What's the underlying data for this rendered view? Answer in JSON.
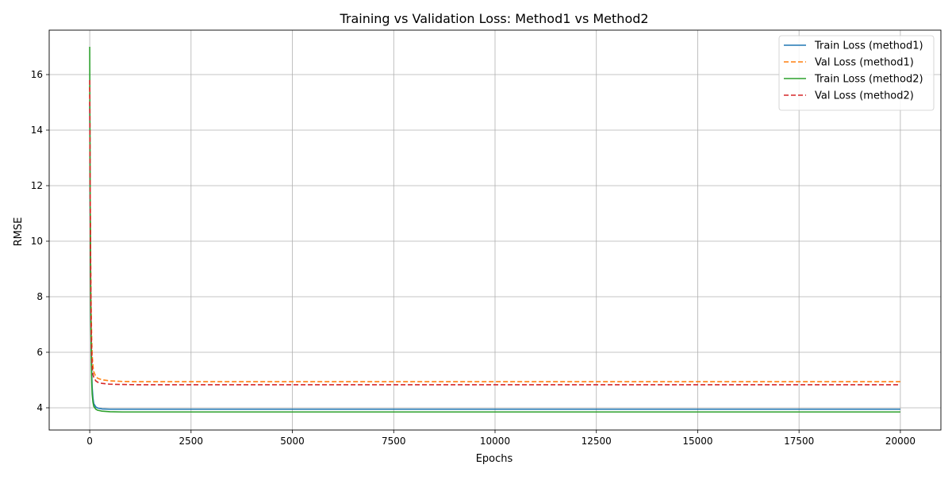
{
  "chart_data": {
    "type": "line",
    "title": "Training vs Validation Loss: Method1 vs Method2",
    "xlabel": "Epochs",
    "ylabel": "RMSE",
    "xlim": [
      -1000,
      21000
    ],
    "ylim": [
      3.2,
      17.6
    ],
    "xticks": [
      0,
      2500,
      5000,
      7500,
      10000,
      12500,
      15000,
      17500,
      20000
    ],
    "yticks": [
      4,
      6,
      8,
      10,
      12,
      14,
      16
    ],
    "grid": true,
    "legend_position": "top-right",
    "series": [
      {
        "name": "Train Loss (method1)",
        "color": "#1f77b4",
        "style": "solid",
        "x": [
          0,
          10,
          20,
          30,
          40,
          50,
          60,
          80,
          100,
          150,
          200,
          300,
          500,
          800,
          1200,
          2000,
          5000,
          10000,
          20000
        ],
        "y": [
          15.0,
          11.5,
          9.0,
          7.2,
          6.0,
          5.2,
          4.75,
          4.35,
          4.15,
          4.03,
          3.99,
          3.96,
          3.95,
          3.95,
          3.95,
          3.95,
          3.95,
          3.95,
          3.95
        ]
      },
      {
        "name": "Val Loss (method1)",
        "color": "#ff7f0e",
        "style": "dashed",
        "x": [
          0,
          10,
          20,
          30,
          40,
          50,
          60,
          80,
          100,
          150,
          200,
          300,
          500,
          800,
          1200,
          2000,
          5000,
          10000,
          20000
        ],
        "y": [
          15.6,
          12.2,
          10.0,
          8.3,
          7.2,
          6.4,
          5.9,
          5.5,
          5.3,
          5.12,
          5.06,
          5.01,
          4.97,
          4.95,
          4.94,
          4.94,
          4.94,
          4.94,
          4.94
        ]
      },
      {
        "name": "Train Loss (method2)",
        "color": "#2ca02c",
        "style": "solid",
        "x": [
          0,
          10,
          20,
          30,
          40,
          50,
          60,
          80,
          100,
          150,
          200,
          300,
          500,
          800,
          1200,
          2000,
          5000,
          10000,
          20000
        ],
        "y": [
          17.0,
          12.0,
          8.8,
          6.8,
          5.6,
          4.9,
          4.5,
          4.2,
          4.05,
          3.95,
          3.91,
          3.88,
          3.86,
          3.85,
          3.85,
          3.85,
          3.85,
          3.85,
          3.85
        ]
      },
      {
        "name": "Val Loss (method2)",
        "color": "#d62728",
        "style": "dashed",
        "x": [
          0,
          10,
          20,
          30,
          40,
          50,
          60,
          80,
          100,
          150,
          200,
          300,
          500,
          800,
          1200,
          2000,
          5000,
          10000,
          20000
        ],
        "y": [
          15.8,
          12.0,
          9.6,
          7.8,
          6.6,
          5.9,
          5.5,
          5.2,
          5.1,
          4.97,
          4.92,
          4.88,
          4.85,
          4.84,
          4.83,
          4.83,
          4.83,
          4.83,
          4.83
        ]
      }
    ]
  }
}
